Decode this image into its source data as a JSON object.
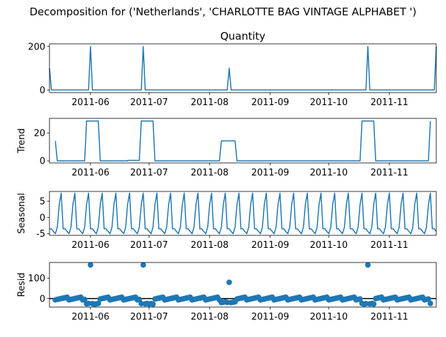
{
  "figure": {
    "suptitle": "Decomposition for ('Netherlands', 'CHARLOTTE BAG VINTAGE ALPHABET ')",
    "line_color": "#1f77b4"
  },
  "chart_data": [
    {
      "type": "line",
      "title": "Quantity",
      "ylabel": "",
      "x_range": [
        "2011-05-11",
        "2011-11-25"
      ],
      "ylim": [
        -12,
        212
      ],
      "yticks": [
        0,
        200
      ],
      "xticks": [
        "2011-06",
        "2011-07",
        "2011-08",
        "2011-09",
        "2011-10",
        "2011-11"
      ],
      "spikes": [
        {
          "date": "2011-05-11",
          "value": 100
        },
        {
          "date": "2011-06-01",
          "value": 200
        },
        {
          "date": "2011-06-28",
          "value": 200
        },
        {
          "date": "2011-08-11",
          "value": 100
        },
        {
          "date": "2011-10-21",
          "value": 200
        },
        {
          "date": "2011-11-25",
          "value": 200
        }
      ],
      "baseline": 0
    },
    {
      "type": "line",
      "title": "",
      "ylabel": "Trend",
      "x_range": [
        "2011-05-11",
        "2011-11-25"
      ],
      "ylim": [
        -1.5,
        30.5
      ],
      "yticks": [
        0,
        20
      ],
      "xticks": [
        "2011-06",
        "2011-07",
        "2011-08",
        "2011-09",
        "2011-10",
        "2011-11"
      ],
      "points": [
        [
          "2011-05-14",
          14.3
        ],
        [
          "2011-05-15",
          0
        ],
        [
          "2011-05-29",
          0
        ],
        [
          "2011-05-30",
          28.6
        ],
        [
          "2011-06-05",
          28.6
        ],
        [
          "2011-06-06",
          0
        ],
        [
          "2011-06-20",
          0
        ],
        [
          "2011-06-20",
          0.3
        ],
        [
          "2011-06-26",
          0.3
        ],
        [
          "2011-06-27",
          28.6
        ],
        [
          "2011-07-03",
          28.6
        ],
        [
          "2011-07-04",
          0
        ],
        [
          "2011-08-06",
          0
        ],
        [
          "2011-08-07",
          14.3
        ],
        [
          "2011-08-14",
          14.3
        ],
        [
          "2011-08-15",
          0
        ],
        [
          "2011-10-17",
          0
        ],
        [
          "2011-10-18",
          28.6
        ],
        [
          "2011-10-24",
          28.6
        ],
        [
          "2011-10-25",
          0
        ],
        [
          "2011-11-21",
          0
        ],
        [
          "2011-11-22",
          28.6
        ]
      ]
    },
    {
      "type": "line",
      "title": "",
      "ylabel": "Seasonal",
      "x_range": [
        "2011-05-11",
        "2011-11-25"
      ],
      "ylim": [
        -5.5,
        8
      ],
      "yticks": [
        -5,
        0,
        5
      ],
      "xticks": [
        "2011-06",
        "2011-07",
        "2011-08",
        "2011-09",
        "2011-10",
        "2011-11"
      ],
      "start": "2011-05-11",
      "end": "2011-11-25",
      "weekly_pattern": [
        -3.5,
        -3.5,
        -4.3,
        -5.0,
        -3.0,
        4.0,
        7.5
      ]
    },
    {
      "type": "scatter",
      "title": "",
      "ylabel": "Resid",
      "x_range": [
        "2011-05-11",
        "2011-11-25"
      ],
      "ylim": [
        -42,
        178
      ],
      "yticks": [
        0,
        100
      ],
      "xticks": [
        "2011-06",
        "2011-07",
        "2011-08",
        "2011-09",
        "2011-10",
        "2011-11"
      ],
      "zero_line": 0,
      "start": "2011-05-14",
      "end": "2011-11-22",
      "outliers": [
        {
          "date": "2011-06-01",
          "value": 166
        },
        {
          "date": "2011-06-28",
          "value": 166
        },
        {
          "date": "2011-08-11",
          "value": 80
        },
        {
          "date": "2011-10-21",
          "value": 166
        }
      ],
      "dips": [
        {
          "from": "2011-05-30",
          "to": "2011-06-05",
          "value": -26
        },
        {
          "from": "2011-06-27",
          "to": "2011-07-03",
          "value": -26
        },
        {
          "from": "2011-08-07",
          "to": "2011-08-14",
          "value": -18
        },
        {
          "from": "2011-10-18",
          "to": "2011-10-24",
          "value": -26
        },
        {
          "from": "2011-11-22",
          "to": "2011-11-22",
          "value": -26
        }
      ]
    }
  ]
}
